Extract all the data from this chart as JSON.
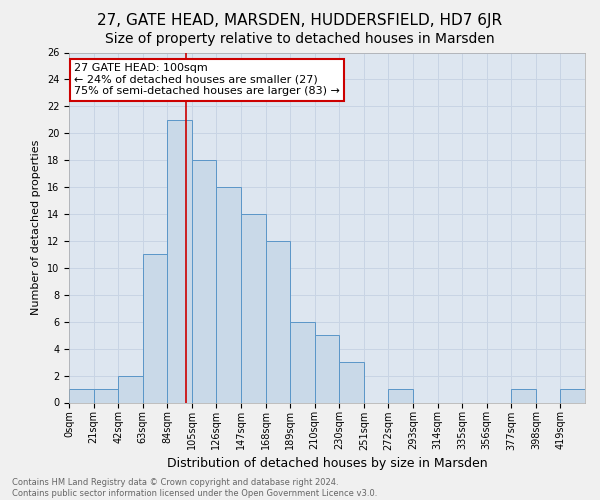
{
  "title": "27, GATE HEAD, MARSDEN, HUDDERSFIELD, HD7 6JR",
  "subtitle": "Size of property relative to detached houses in Marsden",
  "xlabel": "Distribution of detached houses by size in Marsden",
  "ylabel": "Number of detached properties",
  "footer_line1": "Contains HM Land Registry data © Crown copyright and database right 2024.",
  "footer_line2": "Contains public sector information licensed under the Open Government Licence v3.0.",
  "bin_labels": [
    "0sqm",
    "21sqm",
    "42sqm",
    "63sqm",
    "84sqm",
    "105sqm",
    "126sqm",
    "147sqm",
    "168sqm",
    "189sqm",
    "210sqm",
    "230sqm",
    "251sqm",
    "272sqm",
    "293sqm",
    "314sqm",
    "335sqm",
    "356sqm",
    "377sqm",
    "398sqm",
    "419sqm"
  ],
  "bar_values": [
    1,
    1,
    2,
    11,
    21,
    18,
    16,
    14,
    12,
    6,
    5,
    3,
    0,
    1,
    0,
    0,
    0,
    0,
    1,
    0,
    1
  ],
  "bar_color": "#c9d9e8",
  "bar_edge_color": "#5a96c8",
  "annotation_box_text": "27 GATE HEAD: 100sqm\n← 24% of detached houses are smaller (27)\n75% of semi-detached houses are larger (83) →",
  "annotation_box_color": "#ffffff",
  "annotation_box_edge_color": "#cc0000",
  "vline_color": "#cc0000",
  "ylim": [
    0,
    26
  ],
  "yticks": [
    0,
    2,
    4,
    6,
    8,
    10,
    12,
    14,
    16,
    18,
    20,
    22,
    24,
    26
  ],
  "grid_color": "#c8d4e4",
  "background_color": "#dde6f0",
  "fig_bg_color": "#f0f0f0",
  "title_fontsize": 11,
  "subtitle_fontsize": 10,
  "ylabel_fontsize": 8,
  "xlabel_fontsize": 9,
  "tick_fontsize": 7,
  "annotation_fontsize": 8,
  "footer_fontsize": 6
}
